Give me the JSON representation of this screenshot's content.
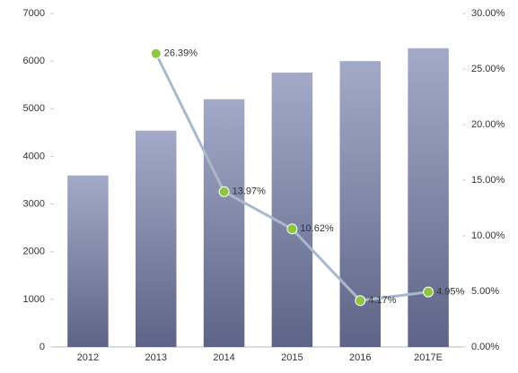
{
  "chart_data": {
    "type": "bar-line",
    "categories": [
      "2012",
      "2013",
      "2014",
      "2015",
      "2016",
      "2017E"
    ],
    "series": [
      {
        "type": "bar",
        "color": "#7d86a8",
        "values": [
          3600,
          4540,
          5200,
          5760,
          6000,
          6270
        ]
      },
      {
        "type": "line",
        "axis": "y2",
        "color": "#a9b9cc",
        "marker_color": "#8dc63f",
        "values": [
          null,
          26.39,
          13.97,
          10.62,
          4.17,
          4.95
        ],
        "value_labels": [
          null,
          "26.39%",
          "13.97%",
          "10.62%",
          "4.17%",
          "4.95%"
        ]
      }
    ],
    "ylim": [
      0,
      7000
    ],
    "yticks": [
      0,
      1000,
      2000,
      3000,
      4000,
      5000,
      6000,
      7000
    ],
    "y2lim": [
      0,
      30
    ],
    "y2ticks": [
      {
        "value": 0,
        "label": "0.00%"
      },
      {
        "value": 5,
        "label": "5.00%"
      },
      {
        "value": 10,
        "label": "10.00%"
      },
      {
        "value": 15,
        "label": "15.00%"
      },
      {
        "value": 20,
        "label": "20.00%"
      },
      {
        "value": 25,
        "label": "25.00%"
      },
      {
        "value": 30,
        "label": "30.00%"
      }
    ]
  }
}
